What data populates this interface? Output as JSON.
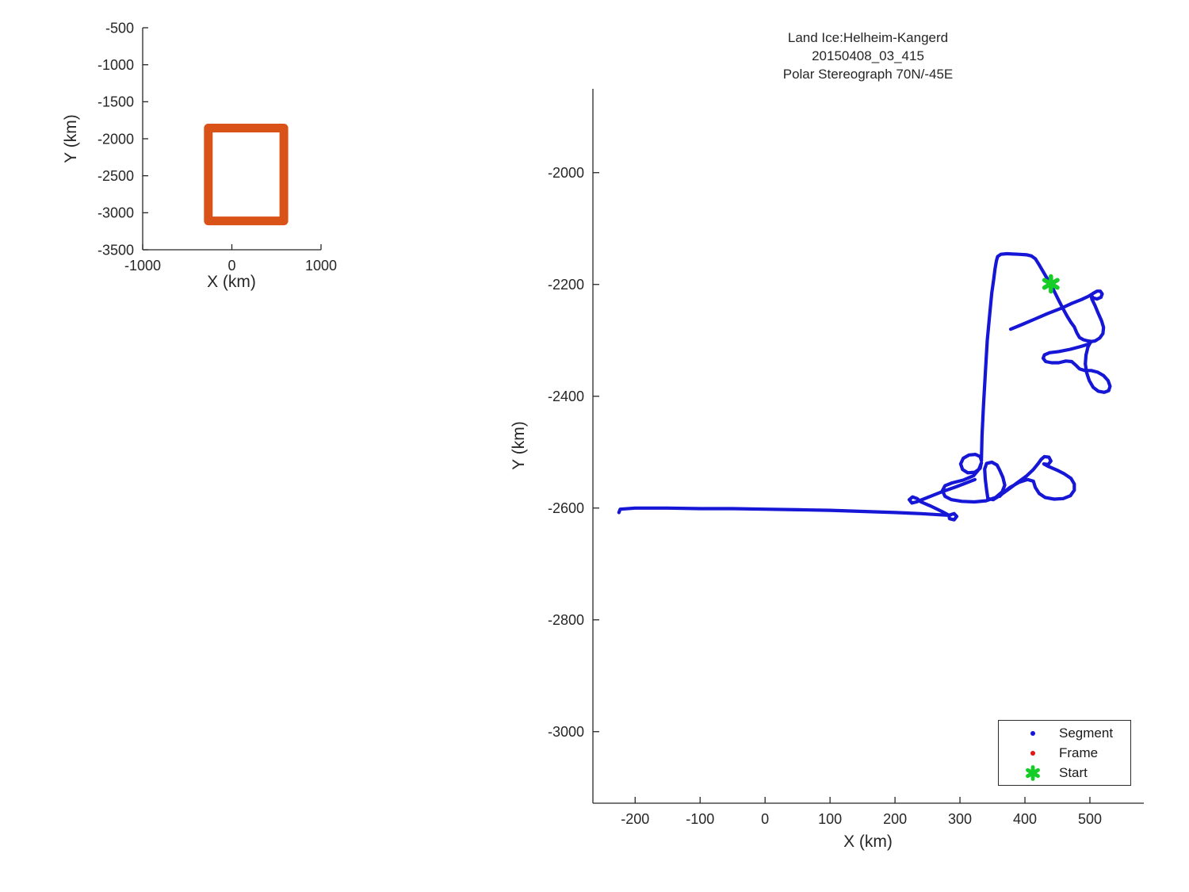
{
  "figure": {
    "background": "#ffffff"
  },
  "chart_data": [
    {
      "id": "overview-inset",
      "type": "line",
      "title": "",
      "xlabel": "X (km)",
      "ylabel": "Y (km)",
      "xlim": [
        -1000,
        1000
      ],
      "ylim": [
        -3500,
        -500
      ],
      "xticks": [
        -1000,
        0,
        1000
      ],
      "yticks": [
        -500,
        -1000,
        -1500,
        -2000,
        -2500,
        -3000,
        -3500
      ],
      "grid": false,
      "coverage_box": {
        "x": [
          -264,
          583
        ],
        "y": [
          -3110,
          -1855
        ],
        "color": "#d95319",
        "linewidth": 11
      }
    },
    {
      "id": "main-map",
      "type": "line",
      "title_lines": [
        "Land Ice:Helheim-Kangerd",
        "20150408_03_415",
        "Polar Stereograph 70N/-45E"
      ],
      "xlabel": "X (km)",
      "ylabel": "Y (km)",
      "xlim": [
        -265,
        583
      ],
      "ylim": [
        -3128,
        -1850
      ],
      "xticks": [
        -200,
        -100,
        0,
        100,
        200,
        300,
        400,
        500
      ],
      "yticks": [
        -2000,
        -2200,
        -2400,
        -2600,
        -2800,
        -3000
      ],
      "grid": false,
      "track_color": "#1616d6",
      "track_linewidth": 4.2,
      "start_point": [
        440,
        -2199
      ],
      "start_marker": {
        "shape": "hexagram",
        "color": "#15cd26",
        "size": 20
      },
      "segments": [
        [
          [
            -225,
            -2608
          ],
          [
            -223,
            -2602
          ],
          [
            -200,
            -2600
          ],
          [
            -150,
            -2600
          ],
          [
            -100,
            -2601
          ],
          [
            -50,
            -2601
          ],
          [
            0,
            -2602
          ],
          [
            50,
            -2603
          ],
          [
            100,
            -2604
          ],
          [
            150,
            -2606
          ],
          [
            200,
            -2608
          ],
          [
            240,
            -2610
          ],
          [
            268,
            -2612
          ],
          [
            283,
            -2613
          ],
          [
            291,
            -2610
          ],
          [
            295,
            -2615
          ],
          [
            291,
            -2621
          ],
          [
            284,
            -2619
          ],
          [
            283,
            -2613
          ],
          [
            272,
            -2606
          ],
          [
            254,
            -2596
          ],
          [
            240,
            -2589
          ],
          [
            234,
            -2583
          ],
          [
            227,
            -2580
          ],
          [
            222,
            -2585
          ],
          [
            226,
            -2591
          ],
          [
            233,
            -2589
          ],
          [
            250,
            -2581
          ],
          [
            272,
            -2571
          ],
          [
            294,
            -2562
          ],
          [
            312,
            -2554
          ],
          [
            323,
            -2549
          ]
        ],
        [
          [
            333,
            -2515
          ],
          [
            334,
            -2470
          ],
          [
            336,
            -2420
          ],
          [
            339,
            -2360
          ],
          [
            342,
            -2300
          ],
          [
            346,
            -2250
          ],
          [
            349,
            -2215
          ],
          [
            352,
            -2190
          ],
          [
            354,
            -2172
          ],
          [
            356,
            -2158
          ],
          [
            358,
            -2150
          ],
          [
            363,
            -2146
          ],
          [
            372,
            -2145
          ],
          [
            390,
            -2146
          ],
          [
            403,
            -2147
          ],
          [
            410,
            -2149
          ],
          [
            416,
            -2154
          ],
          [
            421,
            -2163
          ],
          [
            427,
            -2175
          ],
          [
            433,
            -2187
          ],
          [
            440,
            -2199
          ],
          [
            445,
            -2212
          ],
          [
            451,
            -2226
          ],
          [
            458,
            -2242
          ],
          [
            465,
            -2257
          ],
          [
            471,
            -2268
          ],
          [
            476,
            -2276
          ],
          [
            480,
            -2287
          ],
          [
            484,
            -2295
          ],
          [
            490,
            -2299
          ],
          [
            497,
            -2301
          ],
          [
            503,
            -2302
          ],
          [
            497,
            -2307
          ],
          [
            486,
            -2311
          ],
          [
            470,
            -2316
          ],
          [
            452,
            -2320
          ],
          [
            438,
            -2322
          ],
          [
            430,
            -2326
          ],
          [
            428,
            -2332
          ],
          [
            432,
            -2338
          ],
          [
            441,
            -2340
          ],
          [
            452,
            -2340
          ],
          [
            463,
            -2337
          ],
          [
            472,
            -2338
          ],
          [
            478,
            -2344
          ],
          [
            484,
            -2351
          ],
          [
            492,
            -2354
          ],
          [
            502,
            -2354
          ],
          [
            512,
            -2357
          ],
          [
            521,
            -2363
          ],
          [
            528,
            -2372
          ],
          [
            531,
            -2382
          ],
          [
            529,
            -2390
          ],
          [
            522,
            -2393
          ],
          [
            513,
            -2391
          ],
          [
            505,
            -2384
          ],
          [
            499,
            -2372
          ],
          [
            495,
            -2358
          ],
          [
            493,
            -2342
          ],
          [
            494,
            -2326
          ],
          [
            497,
            -2312
          ],
          [
            501,
            -2303
          ]
        ],
        [
          [
            378,
            -2280
          ],
          [
            395,
            -2272
          ],
          [
            415,
            -2262
          ],
          [
            435,
            -2252
          ],
          [
            455,
            -2243
          ],
          [
            472,
            -2234
          ],
          [
            487,
            -2227
          ],
          [
            498,
            -2221
          ],
          [
            505,
            -2216
          ],
          [
            511,
            -2212
          ],
          [
            516,
            -2212
          ],
          [
            519,
            -2217
          ],
          [
            517,
            -2223
          ],
          [
            511,
            -2226
          ],
          [
            505,
            -2224
          ],
          [
            502,
            -2219
          ],
          [
            503,
            -2226
          ],
          [
            508,
            -2238
          ],
          [
            513,
            -2252
          ],
          [
            518,
            -2265
          ],
          [
            521,
            -2277
          ],
          [
            520,
            -2288
          ],
          [
            515,
            -2296
          ],
          [
            508,
            -2301
          ],
          [
            502,
            -2302
          ]
        ],
        [
          [
            333,
            -2515
          ],
          [
            331,
            -2508
          ],
          [
            324,
            -2504
          ],
          [
            314,
            -2505
          ],
          [
            305,
            -2511
          ],
          [
            301,
            -2521
          ],
          [
            304,
            -2531
          ],
          [
            312,
            -2537
          ],
          [
            323,
            -2536
          ],
          [
            331,
            -2529
          ],
          [
            333,
            -2519
          ],
          [
            329,
            -2531
          ],
          [
            321,
            -2542
          ],
          [
            305,
            -2550
          ],
          [
            288,
            -2555
          ],
          [
            277,
            -2560
          ],
          [
            273,
            -2569
          ],
          [
            277,
            -2579
          ],
          [
            287,
            -2585
          ],
          [
            303,
            -2588
          ],
          [
            322,
            -2589
          ],
          [
            340,
            -2587
          ],
          [
            355,
            -2581
          ],
          [
            365,
            -2571
          ],
          [
            369,
            -2559
          ],
          [
            366,
            -2545
          ],
          [
            361,
            -2532
          ],
          [
            357,
            -2523
          ],
          [
            349,
            -2518
          ],
          [
            341,
            -2520
          ],
          [
            338,
            -2530
          ],
          [
            339,
            -2548
          ],
          [
            341,
            -2568
          ],
          [
            343,
            -2583
          ],
          [
            351,
            -2585
          ],
          [
            361,
            -2578
          ],
          [
            374,
            -2567
          ],
          [
            388,
            -2555
          ],
          [
            402,
            -2543
          ],
          [
            413,
            -2531
          ],
          [
            420,
            -2521
          ],
          [
            425,
            -2513
          ],
          [
            430,
            -2508
          ],
          [
            437,
            -2509
          ],
          [
            440,
            -2516
          ],
          [
            436,
            -2522
          ],
          [
            429,
            -2521
          ],
          [
            437,
            -2526
          ],
          [
            449,
            -2532
          ],
          [
            461,
            -2539
          ],
          [
            471,
            -2547
          ],
          [
            476,
            -2557
          ],
          [
            476,
            -2568
          ],
          [
            470,
            -2578
          ],
          [
            459,
            -2583
          ],
          [
            445,
            -2584
          ],
          [
            431,
            -2581
          ],
          [
            422,
            -2574
          ],
          [
            416,
            -2563
          ],
          [
            413,
            -2552
          ],
          [
            404,
            -2549
          ],
          [
            391,
            -2554
          ],
          [
            377,
            -2563
          ],
          [
            366,
            -2573
          ],
          [
            361,
            -2579
          ]
        ]
      ],
      "legend": {
        "position": "lower-right-inside",
        "entries": [
          {
            "label": "Segment",
            "marker": "dot",
            "color": "#1616d6"
          },
          {
            "label": "Frame",
            "marker": "dot",
            "color": "#e01616"
          },
          {
            "label": "Start",
            "marker": "hexagram",
            "color": "#15cd26"
          }
        ]
      }
    }
  ],
  "style": {
    "axis_color": "#262626",
    "text_color": "#262626",
    "tick_font_px": 18
  }
}
